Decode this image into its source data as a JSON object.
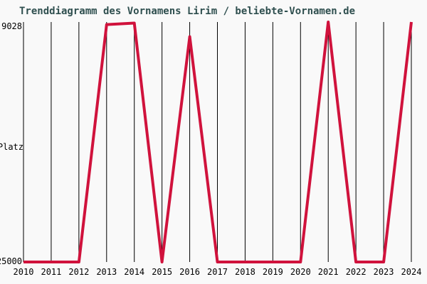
{
  "title": "Trenddiagramm des Vornamens Lirim / beliebte-Vornamen.de",
  "colors": {
    "line": "#d0123c",
    "title": "#2f4f4f",
    "grid": "#000000",
    "label": "#000000",
    "background": "#f9f9f9"
  },
  "y_axis": {
    "top_label": "9028",
    "title": "Platz",
    "bottom_label": "25000"
  },
  "chart_data": {
    "type": "line",
    "title": "Trenddiagramm des Vornamens Lirim / beliebte-Vornamen.de",
    "categories": [
      "2010",
      "2011",
      "2012",
      "2013",
      "2014",
      "2015",
      "2016",
      "2017",
      "2018",
      "2019",
      "2020",
      "2021",
      "2022",
      "2023",
      "2024"
    ],
    "values": [
      25000,
      25000,
      25000,
      9200,
      9100,
      25000,
      10000,
      25000,
      25000,
      25000,
      25000,
      9028,
      25000,
      25000,
      9028
    ],
    "xlabel": "",
    "ylabel": "Platz",
    "ylim": [
      9028,
      25000
    ],
    "y_axis_inverted": true,
    "grid": "vertical-only",
    "legend": "none"
  }
}
